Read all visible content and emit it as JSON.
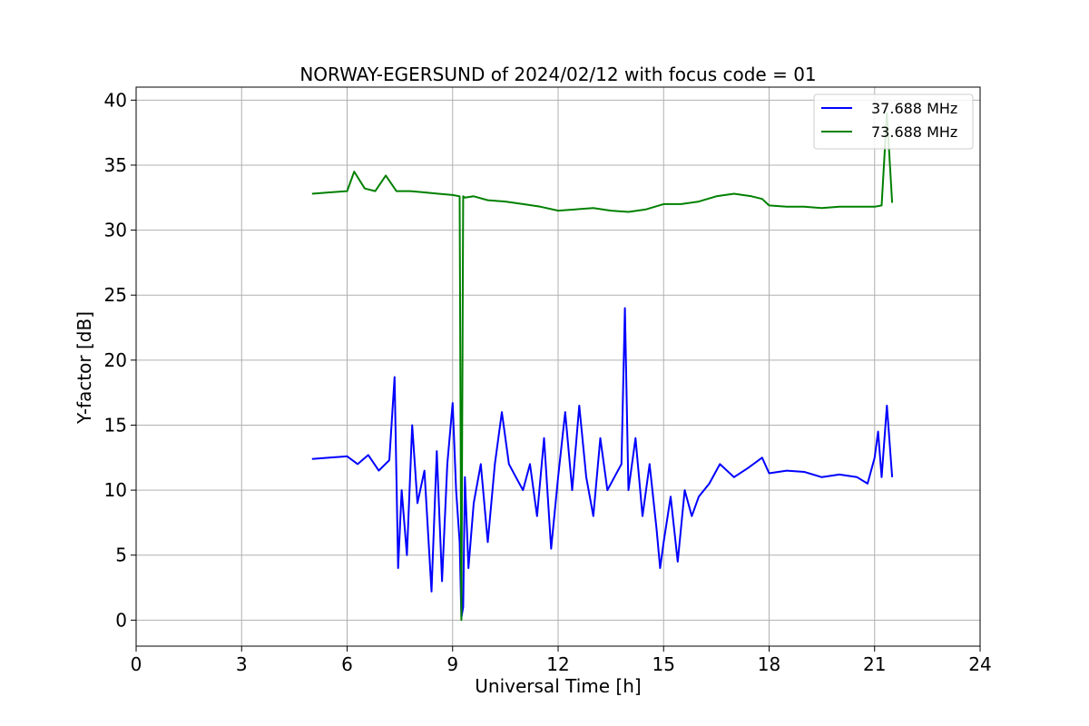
{
  "chart_data": {
    "type": "line",
    "title": "NORWAY-EGERSUND of 2024/02/12 with focus code = 01",
    "xlabel": "Universal Time [h]",
    "ylabel": "Y-factor [dB]",
    "xlim": [
      0,
      24
    ],
    "ylim": [
      -2,
      41
    ],
    "xticks": [
      0,
      3,
      6,
      9,
      12,
      15,
      18,
      21,
      24
    ],
    "yticks": [
      0,
      5,
      10,
      15,
      20,
      25,
      30,
      35,
      40
    ],
    "grid": true,
    "legend_position": "top-right",
    "series": [
      {
        "name": "37.688 MHz",
        "color": "#0000ff",
        "x": [
          5.0,
          5.5,
          6.0,
          6.3,
          6.6,
          6.9,
          7.2,
          7.35,
          7.45,
          7.55,
          7.7,
          7.85,
          8.0,
          8.2,
          8.4,
          8.55,
          8.7,
          8.85,
          9.0,
          9.1,
          9.2,
          9.25,
          9.3,
          9.35,
          9.45,
          9.6,
          9.8,
          10.0,
          10.2,
          10.4,
          10.6,
          10.8,
          11.0,
          11.2,
          11.4,
          11.6,
          11.8,
          12.0,
          12.2,
          12.4,
          12.6,
          12.8,
          13.0,
          13.2,
          13.4,
          13.6,
          13.8,
          13.9,
          14.0,
          14.2,
          14.4,
          14.6,
          14.8,
          14.9,
          15.0,
          15.2,
          15.4,
          15.6,
          15.8,
          16.0,
          16.3,
          16.6,
          17.0,
          17.4,
          17.8,
          18.0,
          18.5,
          19.0,
          19.5,
          20.0,
          20.5,
          20.8,
          21.0,
          21.1,
          21.2,
          21.35,
          21.5
        ],
        "y": [
          12.4,
          12.5,
          12.6,
          12.0,
          12.7,
          11.5,
          12.3,
          18.7,
          4.0,
          10.0,
          5.0,
          15.0,
          9.0,
          11.5,
          2.2,
          13.0,
          3.0,
          12.0,
          16.7,
          10.0,
          6.0,
          0.2,
          1.0,
          11.0,
          4.0,
          9.0,
          12.0,
          6.0,
          12.0,
          16.0,
          12.0,
          11.0,
          10.0,
          12.0,
          8.0,
          14.0,
          5.5,
          11.0,
          16.0,
          10.0,
          16.5,
          11.0,
          8.0,
          14.0,
          10.0,
          11.0,
          12.0,
          24.0,
          10.0,
          14.0,
          8.0,
          12.0,
          7.0,
          4.0,
          6.0,
          9.5,
          4.5,
          10.0,
          8.0,
          9.5,
          10.5,
          12.0,
          11.0,
          11.7,
          12.5,
          11.3,
          11.5,
          11.4,
          11.0,
          11.2,
          11.0,
          10.5,
          12.5,
          14.5,
          11.0,
          16.5,
          11.0
        ]
      },
      {
        "name": "73.688 MHz",
        "color": "#008000",
        "x": [
          5.0,
          5.5,
          6.0,
          6.2,
          6.5,
          6.8,
          7.1,
          7.4,
          7.8,
          8.2,
          8.6,
          9.0,
          9.2,
          9.25,
          9.3,
          9.35,
          9.6,
          10.0,
          10.5,
          11.0,
          11.5,
          12.0,
          12.5,
          13.0,
          13.5,
          14.0,
          14.5,
          15.0,
          15.5,
          16.0,
          16.5,
          17.0,
          17.5,
          17.8,
          18.0,
          18.5,
          19.0,
          19.5,
          20.0,
          20.5,
          21.0,
          21.2,
          21.35,
          21.5
        ],
        "y": [
          32.8,
          32.9,
          33.0,
          34.5,
          33.2,
          33.0,
          34.2,
          33.0,
          33.0,
          32.9,
          32.8,
          32.7,
          32.6,
          0.0,
          32.6,
          32.5,
          32.6,
          32.3,
          32.2,
          32.0,
          31.8,
          31.5,
          31.6,
          31.7,
          31.5,
          31.4,
          31.6,
          32.0,
          32.0,
          32.2,
          32.6,
          32.8,
          32.6,
          32.4,
          31.9,
          31.8,
          31.8,
          31.7,
          31.8,
          31.8,
          31.8,
          31.9,
          39.0,
          32.1
        ]
      }
    ]
  }
}
